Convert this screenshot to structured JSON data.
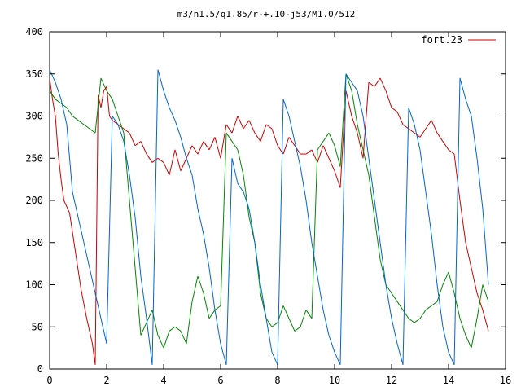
{
  "chart_data": {
    "type": "line",
    "title": "m3/n1.5/q1.85/r-+.10-j53/M1.0/512",
    "xlabel": "",
    "ylabel": "",
    "xlim": [
      0,
      16
    ],
    "ylim": [
      0,
      400
    ],
    "xticks": [
      "0",
      "2",
      "4",
      "6",
      "8",
      "10",
      "12",
      "14",
      "16"
    ],
    "yticks": [
      "0",
      "50",
      "100",
      "150",
      "200",
      "250",
      "300",
      "350",
      "400"
    ],
    "grid": false,
    "legend_position": "top-right",
    "series": [
      {
        "name": "fort.23",
        "color": "#cc0000",
        "x": [
          0.0,
          0.1,
          0.2,
          0.3,
          0.4,
          0.5,
          0.7,
          0.9,
          1.1,
          1.3,
          1.5,
          1.6,
          1.7,
          1.8,
          1.9,
          2.0,
          2.1,
          2.2,
          2.4,
          2.6,
          2.8,
          3.0,
          3.2,
          3.4,
          3.6,
          3.8,
          4.0,
          4.2,
          4.4,
          4.6,
          4.8,
          5.0,
          5.2,
          5.4,
          5.6,
          5.8,
          6.0,
          6.2,
          6.4,
          6.6,
          6.8,
          7.0,
          7.2,
          7.4,
          7.6,
          7.8,
          8.0,
          8.2,
          8.4,
          8.6,
          8.8,
          9.0,
          9.2,
          9.4,
          9.6,
          9.8,
          10.0,
          10.2,
          10.4,
          10.6,
          10.8,
          11.0,
          11.2,
          11.4,
          11.6,
          11.8,
          12.0,
          12.2,
          12.4,
          12.6,
          12.8,
          13.0,
          13.2,
          13.4,
          13.6,
          13.8,
          14.0,
          14.2,
          14.4,
          14.6,
          14.8,
          15.0,
          15.2,
          15.4
        ],
        "y": [
          345,
          320,
          300,
          255,
          225,
          200,
          185,
          140,
          95,
          60,
          30,
          5,
          325,
          310,
          330,
          335,
          300,
          295,
          290,
          285,
          280,
          265,
          270,
          255,
          245,
          250,
          245,
          230,
          260,
          235,
          250,
          265,
          255,
          270,
          260,
          275,
          250,
          290,
          280,
          300,
          285,
          295,
          280,
          270,
          290,
          285,
          265,
          255,
          275,
          265,
          255,
          255,
          260,
          245,
          265,
          250,
          235,
          215,
          330,
          300,
          280,
          250,
          340,
          335,
          345,
          330,
          310,
          305,
          290,
          285,
          280,
          275,
          285,
          295,
          280,
          270,
          260,
          255,
          200,
          150,
          120,
          90,
          70,
          45
        ]
      },
      {
        "name": "",
        "color": "#008800",
        "x": [
          0.0,
          0.2,
          0.4,
          0.6,
          0.8,
          1.0,
          1.2,
          1.4,
          1.6,
          1.8,
          2.0,
          2.2,
          2.4,
          2.6,
          2.8,
          3.0,
          3.2,
          3.4,
          3.6,
          3.8,
          4.0,
          4.2,
          4.4,
          4.6,
          4.8,
          5.0,
          5.2,
          5.4,
          5.6,
          5.8,
          6.0,
          6.2,
          6.4,
          6.6,
          6.8,
          7.0,
          7.2,
          7.4,
          7.6,
          7.8,
          8.0,
          8.2,
          8.4,
          8.6,
          8.8,
          9.0,
          9.2,
          9.4,
          9.6,
          9.8,
          10.0,
          10.2,
          10.4,
          10.6,
          10.8,
          11.0,
          11.2,
          11.4,
          11.6,
          11.8,
          12.0,
          12.2,
          12.4,
          12.6,
          12.8,
          13.0,
          13.2,
          13.4,
          13.6,
          13.8,
          14.0,
          14.2,
          14.4,
          14.6,
          14.8,
          15.0,
          15.2,
          15.4
        ],
        "y": [
          330,
          320,
          315,
          310,
          300,
          295,
          290,
          285,
          280,
          345,
          330,
          320,
          300,
          280,
          200,
          120,
          40,
          55,
          70,
          40,
          25,
          45,
          50,
          45,
          30,
          80,
          110,
          90,
          60,
          70,
          75,
          280,
          270,
          260,
          230,
          180,
          150,
          90,
          60,
          50,
          55,
          75,
          60,
          45,
          50,
          70,
          60,
          260,
          270,
          280,
          265,
          240,
          350,
          330,
          290,
          260,
          230,
          180,
          130,
          100,
          90,
          80,
          70,
          60,
          55,
          60,
          70,
          75,
          80,
          100,
          115,
          90,
          60,
          40,
          25,
          60,
          100,
          80
        ]
      },
      {
        "name": "",
        "color": "#0066cc",
        "x": [
          0.0,
          0.2,
          0.4,
          0.6,
          0.8,
          1.0,
          1.2,
          1.4,
          1.6,
          1.8,
          2.0,
          2.2,
          2.4,
          2.6,
          2.8,
          3.0,
          3.2,
          3.4,
          3.6,
          3.8,
          4.0,
          4.2,
          4.4,
          4.6,
          4.8,
          5.0,
          5.2,
          5.4,
          5.6,
          5.8,
          6.0,
          6.2,
          6.4,
          6.6,
          6.8,
          7.0,
          7.2,
          7.4,
          7.6,
          7.8,
          8.0,
          8.2,
          8.4,
          8.6,
          8.8,
          9.0,
          9.2,
          9.4,
          9.6,
          9.8,
          10.0,
          10.2,
          10.4,
          10.6,
          10.8,
          11.0,
          11.2,
          11.4,
          11.6,
          11.8,
          12.0,
          12.2,
          12.4,
          12.6,
          12.8,
          13.0,
          13.2,
          13.4,
          13.6,
          13.8,
          14.0,
          14.2,
          14.4,
          14.6,
          14.8,
          15.0,
          15.2,
          15.4
        ],
        "y": [
          355,
          340,
          320,
          290,
          210,
          180,
          150,
          120,
          90,
          60,
          30,
          300,
          290,
          270,
          230,
          180,
          110,
          60,
          5,
          355,
          330,
          310,
          295,
          275,
          250,
          230,
          190,
          160,
          120,
          70,
          30,
          5,
          250,
          220,
          210,
          190,
          150,
          100,
          60,
          20,
          5,
          320,
          300,
          270,
          240,
          200,
          150,
          110,
          70,
          40,
          20,
          5,
          350,
          340,
          330,
          300,
          250,
          200,
          150,
          100,
          60,
          30,
          5,
          310,
          290,
          260,
          210,
          160,
          100,
          50,
          20,
          5,
          345,
          320,
          300,
          250,
          190,
          100
        ]
      }
    ]
  }
}
